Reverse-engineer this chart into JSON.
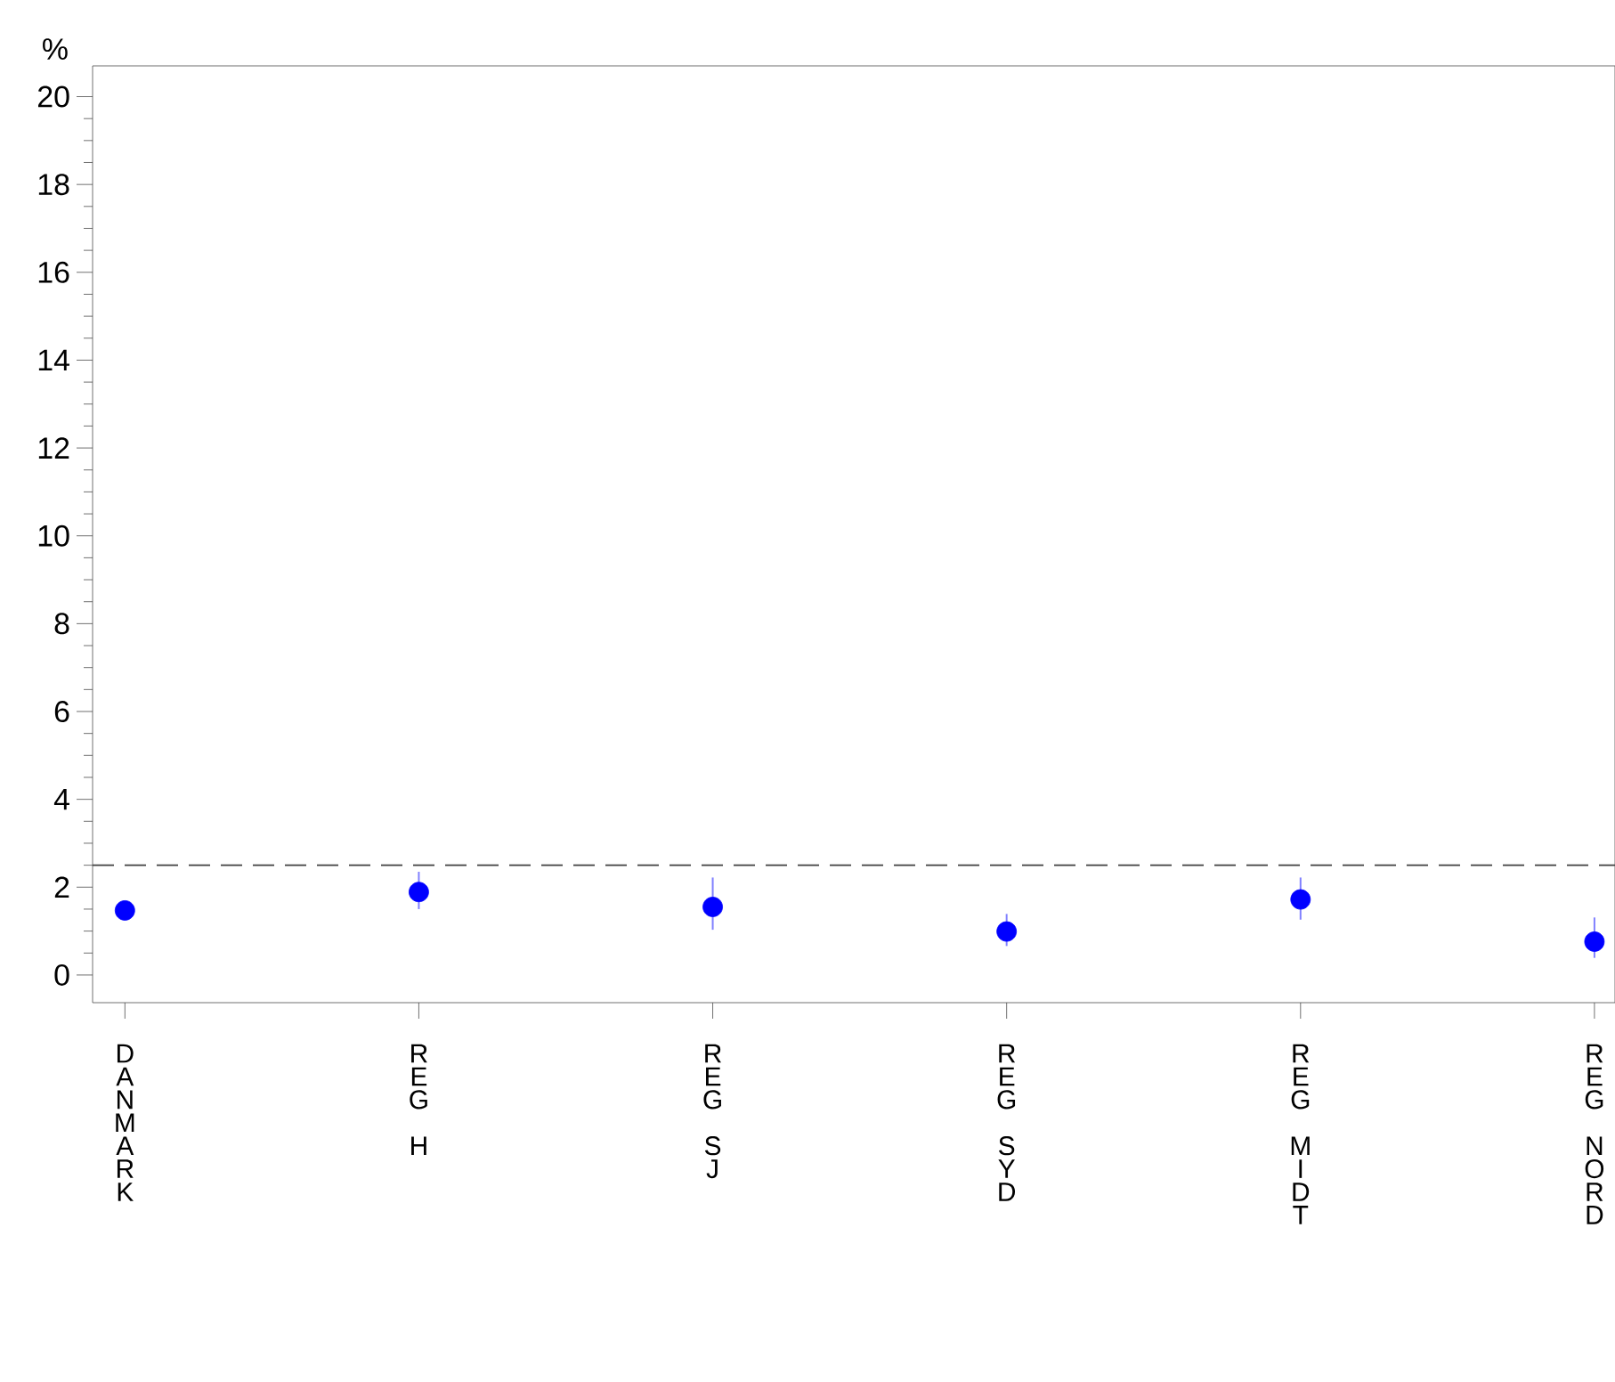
{
  "chart_data": {
    "type": "scatter",
    "ylabel": "%",
    "categories": [
      "DANMARK",
      "REG H",
      "REG SJ",
      "REG SYD",
      "REG MIDT",
      "REG NORD"
    ],
    "series": [
      {
        "color": "#0000ff",
        "values": [
          1.47,
          1.89,
          1.55,
          0.99,
          1.72,
          0.76
        ],
        "errors": [
          [
            1.42,
            1.53
          ],
          [
            1.5,
            2.35
          ],
          [
            1.03,
            2.22
          ],
          [
            0.66,
            1.39
          ],
          [
            1.26,
            2.22
          ],
          [
            0.39,
            1.31
          ]
        ]
      }
    ],
    "ylim": [
      -0.63,
      20.7
    ],
    "yticks": [
      0,
      2,
      4,
      6,
      8,
      10,
      12,
      14,
      16,
      18,
      20
    ],
    "ref_lines": [
      {
        "axis": "y",
        "value": 2.5,
        "line_style": "dashed"
      }
    ],
    "marker": "circle",
    "grid": false
  }
}
